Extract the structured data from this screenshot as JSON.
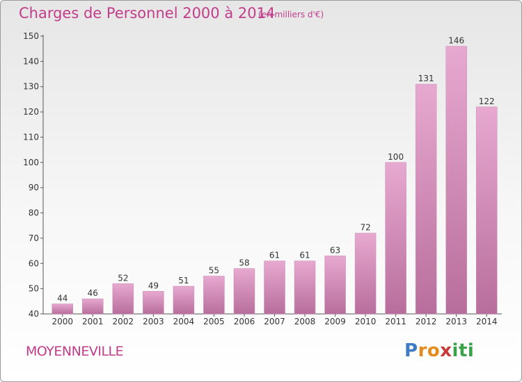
{
  "header": {
    "title": "Charges de Personnel 2000 à 2014",
    "subtitle": "(en milliers d'€)"
  },
  "footer": {
    "place": "MOYENNEVILLE",
    "logo_letters": [
      "P",
      "r",
      "o",
      "x",
      "i",
      "t",
      "i"
    ],
    "logo_colors": [
      "#3e7cc4",
      "#e48b1d",
      "#e48b1d",
      "#c83a3a",
      "#3aa24a",
      "#3aa24a",
      "#3aa24a"
    ]
  },
  "colors": {
    "accent": "#c13d8a",
    "bar_light": "#e7a9d0",
    "bar_dark": "#b86e9c"
  },
  "chart_data": {
    "type": "bar",
    "title": "Charges de Personnel 2000 à 2014",
    "subtitle": "(en milliers d'€)",
    "categories": [
      "2000",
      "2001",
      "2002",
      "2003",
      "2004",
      "2005",
      "2006",
      "2007",
      "2008",
      "2009",
      "2010",
      "2011",
      "2012",
      "2013",
      "2014"
    ],
    "values": [
      44,
      46,
      52,
      49,
      51,
      55,
      58,
      61,
      61,
      63,
      72,
      100,
      131,
      146,
      122
    ],
    "ylim": [
      40,
      150
    ],
    "yticks": [
      40,
      50,
      60,
      70,
      80,
      90,
      100,
      110,
      120,
      130,
      140,
      150
    ],
    "grid": false,
    "legend": "none"
  }
}
